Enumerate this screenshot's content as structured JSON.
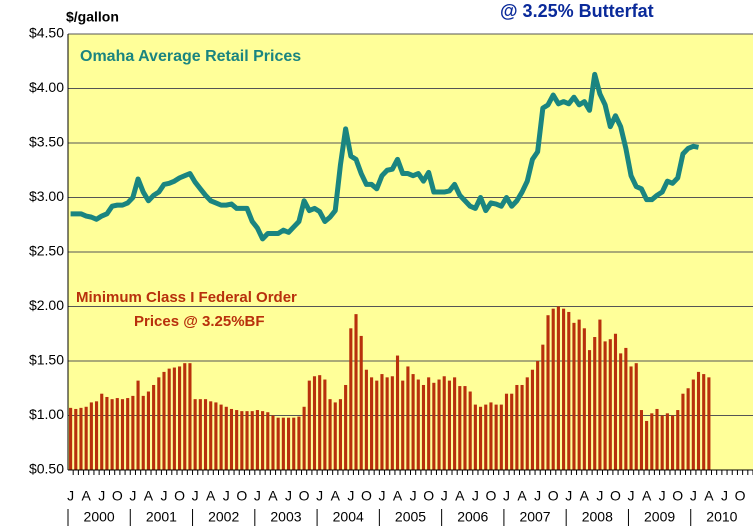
{
  "chart_data": {
    "type": "bar-line",
    "title": "@ 3.25% Butterfat",
    "y_axis_label": "$/gallon",
    "annotations": [
      "Omaha Average Retail Prices",
      "Minimum Class I Federal Order",
      "Prices @ 3.25%BF"
    ],
    "ylim": [
      0.5,
      4.5
    ],
    "yticks": [
      {
        "value": 0.5,
        "label": "$0.50"
      },
      {
        "value": 1,
        "label": "$1.00"
      },
      {
        "value": 1.5,
        "label": "$1.50"
      },
      {
        "value": 2,
        "label": "$2.00"
      },
      {
        "value": 2.5,
        "label": "$2.50"
      },
      {
        "value": 3,
        "label": "$3.00"
      },
      {
        "value": 3.5,
        "label": "$3.50"
      },
      {
        "value": 4,
        "label": "$4.00"
      },
      {
        "value": 4.5,
        "label": "$4.50"
      }
    ],
    "grid": true,
    "years": [
      "2000",
      "2001",
      "2002",
      "2003",
      "2004",
      "2005",
      "2006",
      "2007",
      "2008",
      "2009",
      "2010"
    ],
    "categories": [
      "J",
      null,
      null,
      "A",
      null,
      null,
      "J",
      null,
      null,
      "O",
      null,
      null,
      "J",
      null,
      null,
      "A",
      null,
      null,
      "J",
      null,
      null,
      "O",
      null,
      null,
      "J",
      null,
      null,
      "A",
      null,
      null,
      "J",
      null,
      null,
      "O",
      null,
      null,
      "J",
      null,
      null,
      "A",
      null,
      null,
      "J",
      null,
      null,
      "O",
      null,
      null,
      "J",
      null,
      null,
      "A",
      null,
      null,
      "J",
      null,
      null,
      "O",
      null,
      null,
      "J",
      null,
      null,
      "A",
      null,
      null,
      "J",
      null,
      null,
      "O",
      null,
      null,
      "J",
      null,
      null,
      "A",
      null,
      null,
      "J",
      null,
      null,
      "O",
      null,
      null,
      "J",
      null,
      null,
      "A",
      null,
      null,
      "J",
      null,
      null,
      "O",
      null,
      null,
      "J",
      null,
      null,
      "A",
      null,
      null,
      "J",
      null,
      null,
      "O",
      null,
      null,
      "J",
      null,
      null,
      "A",
      null,
      null,
      "J",
      null,
      null,
      "O",
      null,
      null,
      "J",
      null,
      null,
      "A",
      null,
      null,
      "J",
      null,
      null,
      "O",
      null,
      null
    ],
    "series": [
      {
        "type": "line",
        "color": "#1a8580",
        "values": [
          2.85,
          2.85,
          2.85,
          2.83,
          2.82,
          2.8,
          2.83,
          2.85,
          2.92,
          2.93,
          2.93,
          2.95,
          3.0,
          3.17,
          3.05,
          2.97,
          3.02,
          3.05,
          3.12,
          3.13,
          3.15,
          3.18,
          3.2,
          3.22,
          3.14,
          3.08,
          3.02,
          2.97,
          2.95,
          2.93,
          2.93,
          2.94,
          2.9,
          2.9,
          2.9,
          2.78,
          2.72,
          2.62,
          2.67,
          2.67,
          2.67,
          2.7,
          2.68,
          2.73,
          2.78,
          2.97,
          2.88,
          2.9,
          2.87,
          2.78,
          2.82,
          2.88,
          3.3,
          3.63,
          3.38,
          3.35,
          3.22,
          3.12,
          3.12,
          3.08,
          3.2,
          3.25,
          3.26,
          3.35,
          3.22,
          3.22,
          3.2,
          3.22,
          3.15,
          3.23,
          3.05,
          3.05,
          3.05,
          3.06,
          3.12,
          3.02,
          2.97,
          2.92,
          2.9,
          3.0,
          2.88,
          2.95,
          2.94,
          2.92,
          3.0,
          2.92,
          2.97,
          3.05,
          3.15,
          3.35,
          3.42,
          3.82,
          3.85,
          3.94,
          3.86,
          3.88,
          3.86,
          3.92,
          3.85,
          3.88,
          3.8,
          4.13,
          3.95,
          3.85,
          3.65,
          3.75,
          3.65,
          3.45,
          3.2,
          3.1,
          3.08,
          2.98,
          2.98,
          3.02,
          3.05,
          3.15,
          3.13,
          3.18,
          3.4,
          3.45,
          3.47,
          3.46,
          null,
          null,
          null,
          null,
          null,
          null,
          null,
          null,
          null,
          null
        ]
      },
      {
        "type": "bar",
        "color": "#b8300c",
        "values": [
          1.07,
          1.06,
          1.07,
          1.08,
          1.12,
          1.13,
          1.2,
          1.17,
          1.15,
          1.16,
          1.15,
          1.16,
          1.18,
          1.32,
          1.18,
          1.22,
          1.28,
          1.35,
          1.4,
          1.43,
          1.44,
          1.45,
          1.48,
          1.48,
          1.15,
          1.15,
          1.15,
          1.13,
          1.12,
          1.1,
          1.08,
          1.06,
          1.05,
          1.04,
          1.04,
          1.04,
          1.05,
          1.04,
          1.03,
          1.0,
          0.98,
          0.98,
          0.98,
          0.98,
          0.99,
          1.08,
          1.32,
          1.36,
          1.37,
          1.33,
          1.15,
          1.12,
          1.15,
          1.28,
          1.8,
          1.93,
          1.73,
          1.42,
          1.35,
          1.32,
          1.38,
          1.35,
          1.36,
          1.55,
          1.32,
          1.45,
          1.38,
          1.33,
          1.28,
          1.35,
          1.3,
          1.33,
          1.36,
          1.32,
          1.35,
          1.27,
          1.27,
          1.22,
          1.1,
          1.08,
          1.1,
          1.12,
          1.1,
          1.1,
          1.2,
          1.2,
          1.28,
          1.28,
          1.35,
          1.42,
          1.5,
          1.65,
          1.92,
          1.98,
          2.0,
          1.98,
          1.95,
          1.85,
          1.88,
          1.8,
          1.6,
          1.72,
          1.88,
          1.68,
          1.7,
          1.75,
          1.57,
          1.62,
          1.45,
          1.48,
          1.05,
          0.95,
          1.02,
          1.06,
          1.0,
          1.02,
          1.0,
          1.05,
          1.2,
          1.25,
          1.33,
          1.4,
          1.38,
          1.35,
          null,
          null,
          null,
          null,
          null,
          null,
          null,
          null
        ]
      }
    ]
  }
}
